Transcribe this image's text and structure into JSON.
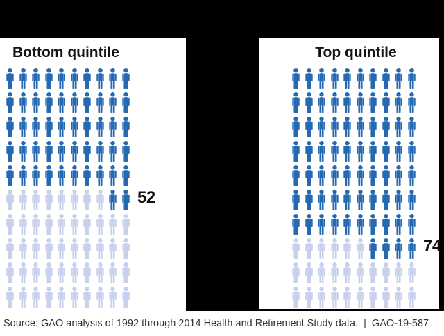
{
  "source_line": "Source: GAO analysis of 1992 through 2014 Health and Retirement Study data.  |  GAO-19-587",
  "chart_data": {
    "type": "pictograph",
    "title": "",
    "unit": "people per 100",
    "icon": "person-icon",
    "panels": [
      {
        "id": "bottom-quintile",
        "title": "Bottom quintile",
        "value": 52,
        "total": 100,
        "columns": 10,
        "rows": 10,
        "value_label": "52"
      },
      {
        "id": "top-quintile",
        "title": "Top quintile",
        "value": 74,
        "total": 100,
        "columns": 10,
        "rows": 10,
        "value_label": "74"
      }
    ],
    "colors": {
      "filled": "#2569b3",
      "unfilled": "#c8d0eb",
      "label": "#111111",
      "panel_background": "#ffffff",
      "page_background": "#000000"
    },
    "fill_pattern": "full rows fill from top; remainder icons right-aligned in the next row; count label sits beside the remainder row",
    "legend_position": "none",
    "grid": "off"
  }
}
